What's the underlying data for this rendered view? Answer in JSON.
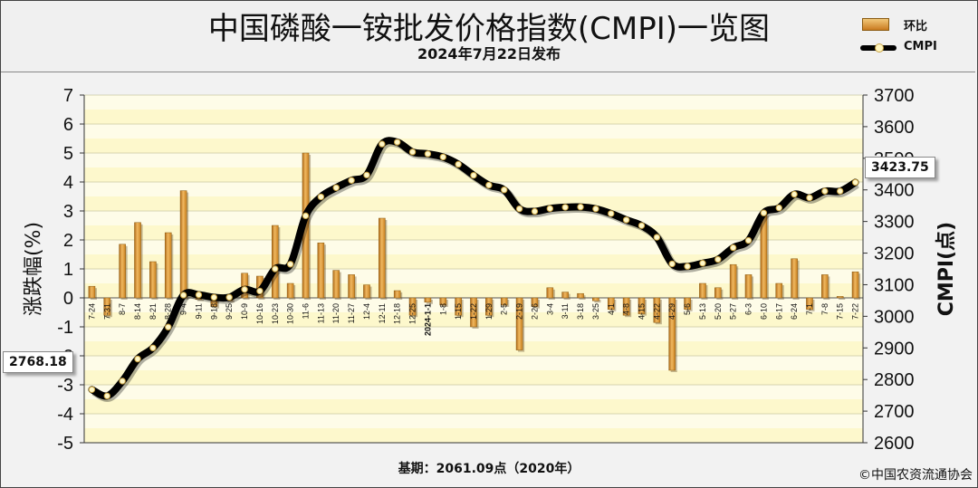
{
  "header": {
    "title": "中国磷酸一铵批发价格指数(CMPI)一览图",
    "subtitle": "2024年7月22日发布"
  },
  "legend": {
    "bar_label": "环比",
    "line_label": "CMPI"
  },
  "footer": {
    "base_note": "基期：2061.09点（2020年）",
    "copyright": "©中国农资流通协会"
  },
  "callouts": {
    "first_value": "2768.18",
    "last_value": "3423.75"
  },
  "chart_data": {
    "type": "bar+line",
    "title": "中国磷酸一铵批发价格指数(CMPI)一览图",
    "subtitle": "2024年7月22日发布",
    "x_tick_labels": [
      "7-24",
      "7-31",
      "8-7",
      "8-14",
      "8-21",
      "8-28",
      "9-4",
      "9-11",
      "9-18",
      "9-25",
      "10-9",
      "10-16",
      "10-23",
      "10-30",
      "11-6",
      "11-13",
      "11-20",
      "11-27",
      "12-4",
      "12-11",
      "12-18",
      "12-25",
      "2024-1-1",
      "1-8",
      "1-15",
      "1-22",
      "1-29",
      "2-5",
      "2-19",
      "2-26",
      "3-4",
      "3-11",
      "3-18",
      "3-25",
      "4-1",
      "4-8",
      "4-15",
      "4-22",
      "4-29",
      "5-6",
      "5-13",
      "5-20",
      "5-27",
      "6-3",
      "6-10",
      "6-17",
      "6-24",
      "7-1",
      "7-8",
      "7-15",
      "7-22"
    ],
    "y_left": {
      "label": "涨跌幅(%)",
      "lim": [
        -5,
        7
      ],
      "ticks": [
        -5,
        -4,
        -3,
        -2,
        -1,
        0,
        1,
        2,
        3,
        4,
        5,
        6,
        7
      ]
    },
    "y_right": {
      "label": "CMPI(点)",
      "lim": [
        2600,
        3700
      ],
      "ticks": [
        2600,
        2700,
        2800,
        2900,
        3000,
        3100,
        3200,
        3300,
        3400,
        3500,
        3600,
        3700
      ]
    },
    "series": [
      {
        "name": "环比",
        "type": "bar",
        "axis": "left",
        "color": "#d9902e",
        "values": [
          0.4,
          -0.6,
          1.85,
          2.6,
          1.25,
          2.25,
          3.7,
          -0.05,
          -0.3,
          -0.1,
          0.85,
          0.75,
          2.5,
          0.5,
          5.0,
          1.9,
          0.95,
          0.8,
          0.45,
          2.75,
          0.25,
          -0.6,
          -0.15,
          -0.25,
          -0.6,
          -1.0,
          -0.6,
          -0.25,
          -1.8,
          -0.3,
          0.35,
          0.2,
          0.15,
          -0.1,
          -0.4,
          -0.6,
          -0.55,
          -0.85,
          -2.5,
          -0.4,
          0.5,
          0.35,
          1.15,
          0.8,
          2.9,
          0.5,
          1.35,
          -0.4,
          0.8,
          0.05,
          0.9
        ]
      },
      {
        "name": "CMPI",
        "type": "line",
        "axis": "right",
        "color": "#000000",
        "values": [
          2768.18,
          2748,
          2795,
          2865,
          2900,
          2966,
          3067,
          3068,
          3060,
          3060,
          3085,
          3080,
          3150,
          3165,
          3318,
          3378,
          3407,
          3430,
          3447,
          3545,
          3551,
          3520,
          3514,
          3504,
          3481,
          3446,
          3415,
          3400,
          3340,
          3332,
          3341,
          3345,
          3346,
          3340,
          3325,
          3305,
          3287,
          3250,
          3166,
          3158,
          3168,
          3180,
          3217,
          3240,
          3327,
          3343,
          3386,
          3375,
          3396,
          3396,
          3423.75
        ]
      }
    ],
    "grid": true,
    "legend_position": "top-right"
  }
}
